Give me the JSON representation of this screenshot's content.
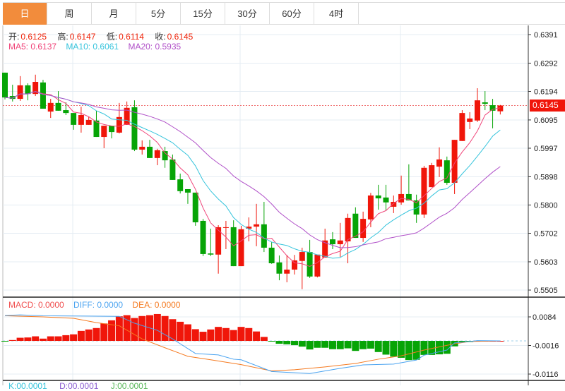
{
  "tabs": [
    {
      "label": "日",
      "active": true
    },
    {
      "label": "周"
    },
    {
      "label": "月"
    },
    {
      "label": "5分"
    },
    {
      "label": "15分"
    },
    {
      "label": "30分"
    },
    {
      "label": "60分"
    },
    {
      "label": "4时"
    }
  ],
  "ohlc_info": {
    "open_label": "开:",
    "open": "0.6125",
    "high_label": "高:",
    "high": "0.6147",
    "low_label": "低:",
    "low": "0.6114",
    "close_label": "收:",
    "close": "0.6145"
  },
  "ma_info": {
    "ma5": "MA5: 0.6137",
    "ma10": "MA10: 0.6061",
    "ma20": "MA20: 0.5935"
  },
  "macd_info": {
    "macd": "MACD: 0.0000",
    "diff": "DIFF: 0.0000",
    "dea": "DEA: 0.0000"
  },
  "kdj_info": {
    "k": "K:00.0001",
    "d": "D:00.0001",
    "j": "J:00.0001"
  },
  "current_price": "0.6145",
  "colors": {
    "up": "#f0160a",
    "down": "#06a406",
    "ma5": "#f0457a",
    "ma10": "#36c4dc",
    "ma20": "#b050c8",
    "diff": "#4aa3f0",
    "dea": "#f57a20",
    "accent": "#f28c3c"
  },
  "chart_data": [
    {
      "type": "candlestick",
      "title": "",
      "y_ticks": [
        "0.6391",
        "0.6292",
        "0.6194",
        "0.6095",
        "0.5997",
        "0.5898",
        "0.5800",
        "0.5702",
        "0.5603",
        "0.5505"
      ],
      "ylim": [
        0.5505,
        0.6391
      ],
      "candles": [
        [
          0.6259,
          0.6259,
          0.6166,
          0.6173
        ],
        [
          0.6178,
          0.6217,
          0.6159,
          0.6168
        ],
        [
          0.6168,
          0.6247,
          0.6161,
          0.6215
        ],
        [
          0.6215,
          0.6222,
          0.6163,
          0.6185
        ],
        [
          0.6185,
          0.6252,
          0.6178,
          0.6227
        ],
        [
          0.6225,
          0.6234,
          0.6134,
          0.6134
        ],
        [
          0.6124,
          0.6168,
          0.6102,
          0.6154
        ],
        [
          0.6154,
          0.6195,
          0.6127,
          0.6127
        ],
        [
          0.6129,
          0.6156,
          0.6112,
          0.6119
        ],
        [
          0.6119,
          0.6119,
          0.6061,
          0.6078
        ],
        [
          0.6078,
          0.6141,
          0.6051,
          0.6112
        ],
        [
          0.6078,
          0.6105,
          0.6078,
          0.6095
        ],
        [
          0.6093,
          0.6127,
          0.6036,
          0.6036
        ],
        [
          0.6036,
          0.6075,
          0.5997,
          0.6075
        ],
        [
          0.6075,
          0.6075,
          0.6031,
          0.6053
        ],
        [
          0.6051,
          0.6154,
          0.6048,
          0.6105
        ],
        [
          0.6078,
          0.6159,
          0.6078,
          0.6137
        ],
        [
          0.6139,
          0.6163,
          0.5987,
          0.5992
        ],
        [
          0.5992,
          0.6024,
          0.5975,
          0.6002
        ],
        [
          0.6002,
          0.6026,
          0.5963,
          0.5963
        ],
        [
          0.5963,
          0.5995,
          0.5938,
          0.599
        ],
        [
          0.5987,
          0.6002,
          0.5929,
          0.5955
        ],
        [
          0.5958,
          0.5975,
          0.5887,
          0.5887
        ],
        [
          0.5889,
          0.5909,
          0.584,
          0.5848
        ],
        [
          0.5855,
          0.5855,
          0.5804,
          0.5843
        ],
        [
          0.5843,
          0.5843,
          0.5728,
          0.574
        ],
        [
          0.5745,
          0.5752,
          0.5623,
          0.563
        ],
        [
          0.5632,
          0.5718,
          0.5623,
          0.5628
        ],
        [
          0.5628,
          0.573,
          0.5562,
          0.5723
        ],
        [
          0.5721,
          0.5745,
          0.5647,
          0.5723
        ],
        [
          0.5723,
          0.5747,
          0.5588,
          0.5588
        ],
        [
          0.5588,
          0.5728,
          0.5588,
          0.5716
        ],
        [
          0.5718,
          0.5757,
          0.5674,
          0.5725
        ],
        [
          0.5725,
          0.5804,
          0.5657,
          0.5733
        ],
        [
          0.5733,
          0.5811,
          0.5637,
          0.5652
        ],
        [
          0.5652,
          0.5672,
          0.5596,
          0.5598
        ],
        [
          0.5601,
          0.5625,
          0.5539,
          0.5562
        ],
        [
          0.5562,
          0.5627,
          0.5532,
          0.5576
        ],
        [
          0.5576,
          0.5627,
          0.5559,
          0.5608
        ],
        [
          0.5606,
          0.5652,
          0.5508,
          0.5637
        ],
        [
          0.5637,
          0.5679,
          0.5547,
          0.5552
        ],
        [
          0.5552,
          0.5628,
          0.5549,
          0.5628
        ],
        [
          0.5618,
          0.5718,
          0.5618,
          0.5677
        ],
        [
          0.5681,
          0.5706,
          0.5647,
          0.5664
        ],
        [
          0.5664,
          0.5738,
          0.562,
          0.5677
        ],
        [
          0.5674,
          0.577,
          0.5598,
          0.5755
        ],
        [
          0.577,
          0.5792,
          0.5686,
          0.5686
        ],
        [
          0.5686,
          0.5777,
          0.5672,
          0.5752
        ],
        [
          0.575,
          0.5842,
          0.5723,
          0.5833
        ],
        [
          0.5833,
          0.587,
          0.5784,
          0.5823
        ],
        [
          0.5826,
          0.587,
          0.5782,
          0.5809
        ],
        [
          0.5794,
          0.5833,
          0.5772,
          0.5811
        ],
        [
          0.5809,
          0.5902,
          0.5801,
          0.5838
        ],
        [
          0.5838,
          0.5941,
          0.5816,
          0.5816
        ],
        [
          0.5816,
          0.5836,
          0.5738,
          0.5767
        ],
        [
          0.5767,
          0.5936,
          0.5755,
          0.5929
        ],
        [
          0.5862,
          0.5946,
          0.5862,
          0.5938
        ],
        [
          0.5933,
          0.6,
          0.5897,
          0.5958
        ],
        [
          0.5955,
          0.5968,
          0.587,
          0.5877
        ],
        [
          0.5877,
          0.6026,
          0.5838,
          0.6026
        ],
        [
          0.6022,
          0.6129,
          0.6022,
          0.6119
        ],
        [
          0.6088,
          0.6122,
          0.6063,
          0.61
        ],
        [
          0.6093,
          0.6205,
          0.6088,
          0.6163
        ],
        [
          0.6156,
          0.6195,
          0.6129,
          0.6151
        ],
        [
          0.6146,
          0.6168,
          0.6066,
          0.6127
        ],
        [
          0.6125,
          0.6147,
          0.6114,
          0.6145
        ]
      ],
      "series": [
        {
          "name": "MA5",
          "period": 5
        },
        {
          "name": "MA10",
          "period": 10
        },
        {
          "name": "MA20",
          "period": 20
        }
      ]
    },
    {
      "type": "bar",
      "title": "MACD",
      "y_ticks": [
        "0.0084",
        "-0.0016",
        "-0.0116"
      ],
      "ylim": [
        -0.0116,
        0.0084
      ],
      "histogram": [
        -0.0002,
        0.0003,
        0.0011,
        0.0012,
        0.0016,
        0.0008,
        0.0016,
        0.0016,
        0.002,
        0.0023,
        0.0035,
        0.004,
        0.0045,
        0.0061,
        0.0072,
        0.0086,
        0.009,
        0.008,
        0.0087,
        0.009,
        0.0094,
        0.0087,
        0.0076,
        0.0067,
        0.0058,
        0.0041,
        0.0032,
        0.004,
        0.0049,
        0.0045,
        0.0038,
        0.0049,
        0.0045,
        0.0033,
        0.0014,
        -0.0002,
        -0.001,
        -0.0012,
        -0.0015,
        -0.002,
        -0.003,
        -0.0024,
        -0.0024,
        -0.0029,
        -0.0029,
        -0.0026,
        -0.0035,
        -0.0029,
        -0.0027,
        -0.0039,
        -0.0048,
        -0.0055,
        -0.0059,
        -0.0067,
        -0.0066,
        -0.0049,
        -0.0049,
        -0.0047,
        -0.0045,
        -0.0019,
        -0.0004,
        -0.0004,
        0.0001,
        0,
        0,
        0
      ],
      "diff": [
        [
          0,
          0.0089
        ],
        [
          2,
          0.0091
        ],
        [
          5,
          0.0088
        ],
        [
          15,
          0.0086
        ],
        [
          17,
          0.0062
        ],
        [
          20,
          0.0037
        ],
        [
          22,
          0.0007
        ],
        [
          25,
          -0.0044
        ],
        [
          28,
          -0.0049
        ],
        [
          30,
          -0.0064
        ],
        [
          31,
          -0.0066
        ],
        [
          35,
          -0.0107
        ],
        [
          40,
          -0.0114
        ],
        [
          44,
          -0.0096
        ],
        [
          47,
          -0.0084
        ],
        [
          51,
          -0.0081
        ],
        [
          54,
          -0.0067
        ],
        [
          55,
          -0.005
        ],
        [
          58,
          -0.0032
        ],
        [
          59,
          -0.0007
        ],
        [
          61,
          -0.0002
        ],
        [
          62,
          0.0001
        ],
        [
          65,
          0
        ]
      ],
      "dea": [
        [
          0,
          0.0088
        ],
        [
          5,
          0.0084
        ],
        [
          9,
          0.0079
        ],
        [
          12,
          0.0064
        ],
        [
          15,
          0.0053
        ],
        [
          18,
          0.0007
        ],
        [
          21,
          -0.0024
        ],
        [
          24,
          -0.0054
        ],
        [
          27,
          -0.0066
        ],
        [
          31,
          -0.0083
        ],
        [
          35,
          -0.0105
        ],
        [
          38,
          -0.0101
        ],
        [
          42,
          -0.0091
        ],
        [
          46,
          -0.0079
        ],
        [
          49,
          -0.0064
        ],
        [
          52,
          -0.0052
        ],
        [
          55,
          -0.0032
        ],
        [
          59,
          -0.001
        ],
        [
          61,
          -0.0002
        ],
        [
          65,
          0
        ]
      ]
    }
  ]
}
